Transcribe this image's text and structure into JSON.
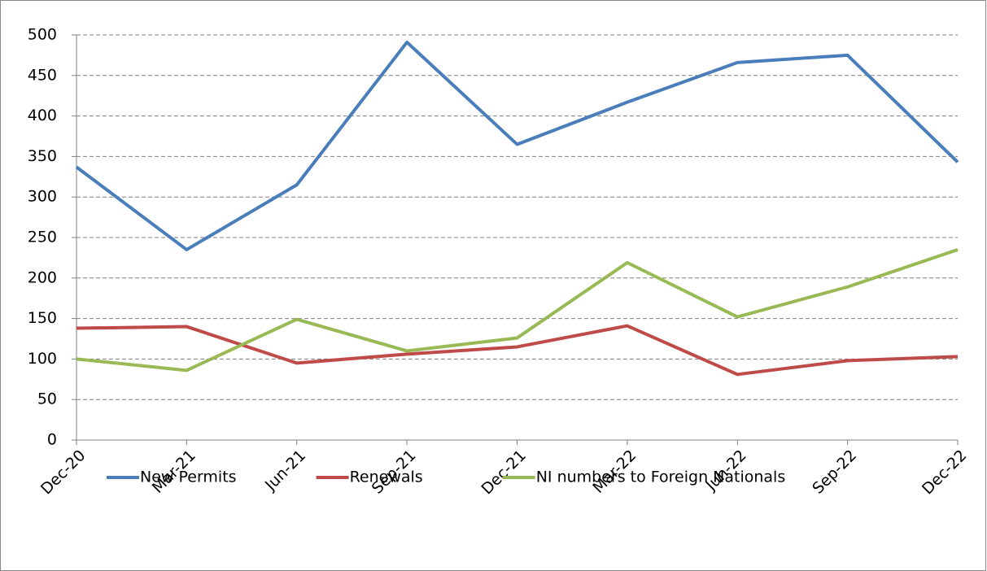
{
  "chart_data": {
    "type": "line",
    "categories": [
      "Dec-20",
      "Mar-21",
      "Jun-21",
      "Sep-21",
      "Dec-21",
      "Mar-22",
      "Jun-22",
      "Sep-22",
      "Dec-22"
    ],
    "series": [
      {
        "name": "New Permits",
        "color": "#4a7ebb",
        "values": [
          337,
          235,
          315,
          491,
          365,
          417,
          466,
          475,
          343
        ]
      },
      {
        "name": "Renewals",
        "color": "#be4b48",
        "values": [
          138,
          140,
          95,
          106,
          115,
          141,
          81,
          98,
          103
        ]
      },
      {
        "name": "NI numbers to Foreign Nationals",
        "color": "#98b954",
        "values": [
          100,
          86,
          149,
          110,
          126,
          219,
          152,
          189,
          235
        ]
      }
    ],
    "ylim": [
      0,
      500
    ],
    "yticks": [
      0,
      50,
      100,
      150,
      200,
      250,
      300,
      350,
      400,
      450,
      500
    ],
    "grid": true,
    "legend": "bottom"
  }
}
